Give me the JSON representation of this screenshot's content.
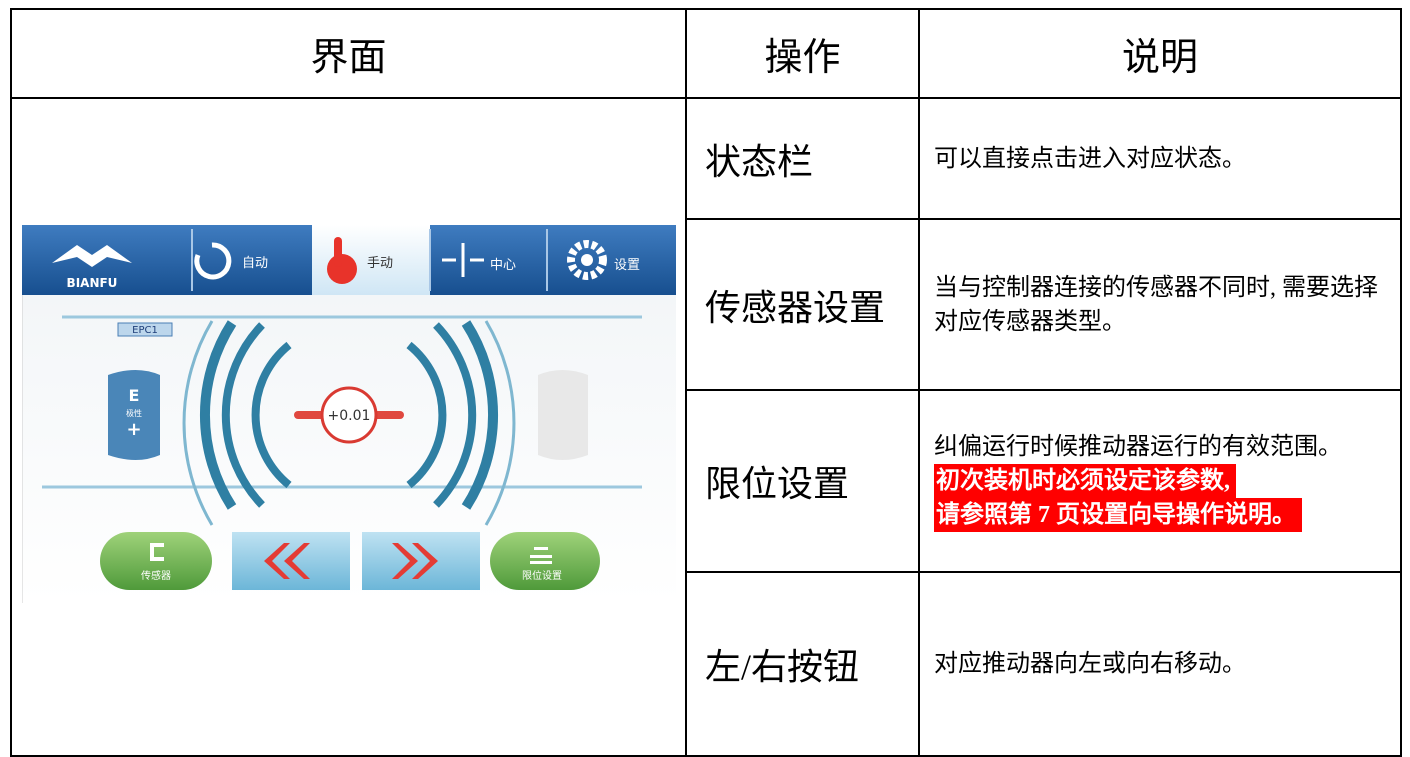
{
  "table": {
    "header": [
      "界面",
      "操作",
      "说明"
    ],
    "rows": [
      {
        "operation": "状态栏",
        "description": [
          "可以直接点击进入对应状态。"
        ]
      },
      {
        "operation": "传感器设置",
        "description": [
          "当与控制器连接的传感器不同时, 需要选择对应传感器类型。"
        ]
      },
      {
        "operation": "限位设置",
        "description": [
          "纠偏运行时候推动器运行的有效范围。"
        ],
        "highlight": [
          "初次装机时必须设定该参数,",
          "请参照第 7 页设置向导操作说明。"
        ]
      },
      {
        "operation": "左/右按钮",
        "description": [
          "对应推动器向左或向右移动。"
        ]
      }
    ]
  },
  "screen": {
    "logo": "BIANFU",
    "tabs": [
      "自动",
      "手动",
      "中心",
      "设置"
    ],
    "channel": "EPC1",
    "polarity_letter": "E",
    "polarity_label": "极性",
    "polarity_sign": "+",
    "value": "+0.01",
    "buttons": [
      "传感器",
      "限位设置"
    ]
  }
}
